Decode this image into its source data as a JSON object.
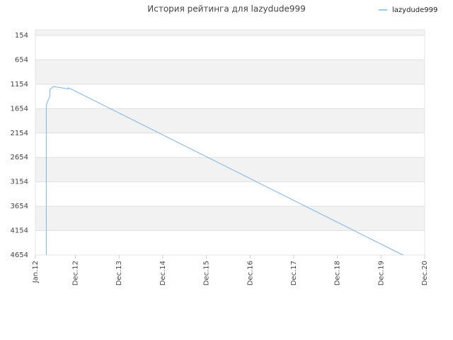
{
  "chart_data": {
    "type": "line",
    "title": "История рейтинга для lazydude999",
    "x": [
      "2012-04",
      "2012-04",
      "2012-05",
      "2012-05",
      "2012-06",
      "2012-10",
      "2012-10",
      "2012-11",
      "2020-06"
    ],
    "series": [
      {
        "name": "lazydude999",
        "color": "#7cb5ec",
        "values": [
          4654,
          1580,
          1390,
          1260,
          1200,
          1250,
          1230,
          1260,
          4654
        ]
      }
    ],
    "xlim": [
      "2012-01",
      "2020-12"
    ],
    "xticks": [
      {
        "value": "2012-01",
        "label": "Jan.12"
      },
      {
        "value": "2012-12",
        "label": "Dec.12"
      },
      {
        "value": "2013-12",
        "label": "Dec.13"
      },
      {
        "value": "2014-12",
        "label": "Dec.14"
      },
      {
        "value": "2015-12",
        "label": "Dec.15"
      },
      {
        "value": "2016-12",
        "label": "Dec.16"
      },
      {
        "value": "2017-12",
        "label": "Dec.17"
      },
      {
        "value": "2018-12",
        "label": "Dec.18"
      },
      {
        "value": "2019-12",
        "label": "Dec.19"
      },
      {
        "value": "2020-12",
        "label": "Dec.20"
      }
    ],
    "ylim": [
      4654,
      38
    ],
    "yticks": [
      154,
      654,
      1154,
      1654,
      2154,
      2654,
      3154,
      3654,
      4154,
      4654
    ],
    "grid": true,
    "legend": "top-right"
  }
}
